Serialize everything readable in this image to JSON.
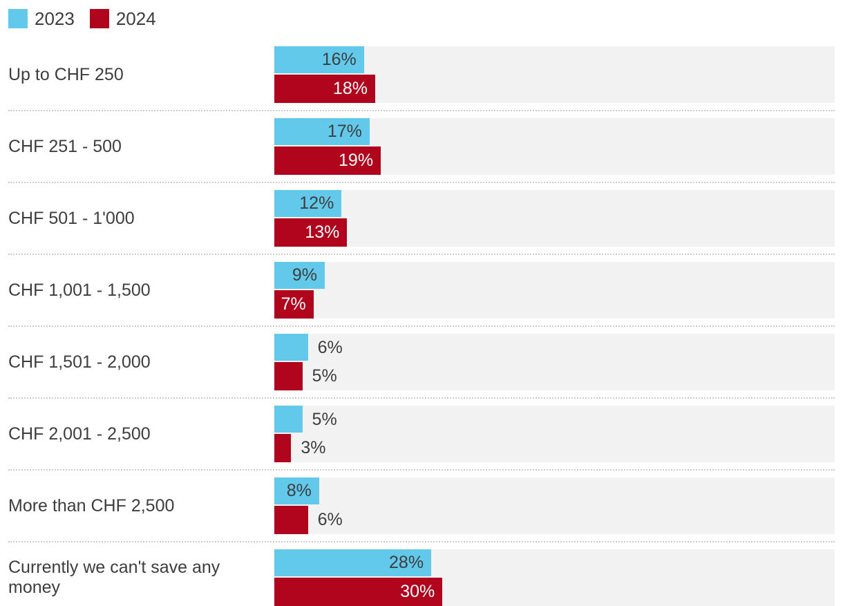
{
  "colors": {
    "series_2023": "#63c9eb",
    "series_2024": "#b1051e",
    "track": "#f2f2f2",
    "separator_dots": "#cccccc",
    "text": "#3d3d3d",
    "value_inside_red": "#ffffff"
  },
  "chart_data": {
    "type": "bar",
    "orientation": "horizontal",
    "title": "",
    "xlabel": "",
    "ylabel": "",
    "xlim": [
      0,
      100
    ],
    "grid": false,
    "legend_position": "top-left",
    "value_suffix": "%",
    "categories": [
      "Up to CHF 250",
      "CHF 251 - 500",
      "CHF 501 - 1'000",
      "CHF 1,001 - 1,500",
      "CHF 1,501 - 2,000",
      "CHF 2,001 - 2,500",
      "More than CHF 2,500",
      "Currently we can't save any money"
    ],
    "series": [
      {
        "name": "2023",
        "color": "#63c9eb",
        "values": [
          16,
          17,
          12,
          9,
          6,
          5,
          8,
          28
        ]
      },
      {
        "name": "2024",
        "color": "#b1051e",
        "values": [
          18,
          19,
          13,
          7,
          5,
          3,
          6,
          30
        ]
      }
    ]
  }
}
